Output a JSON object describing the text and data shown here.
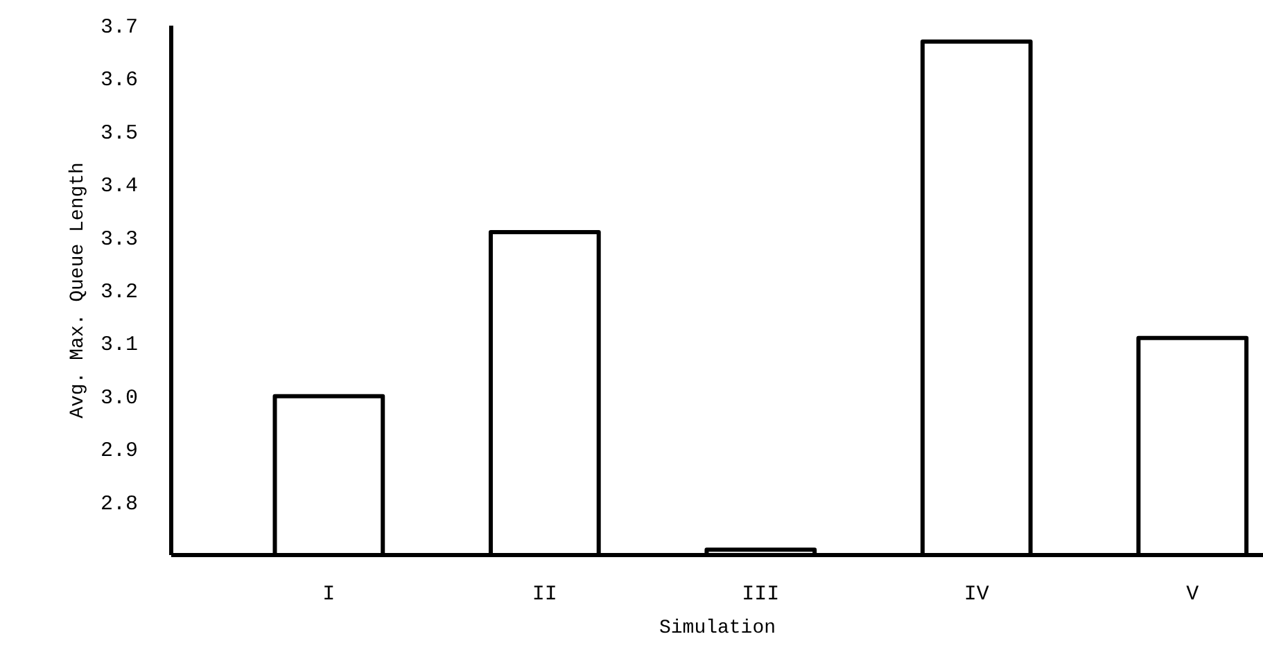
{
  "chart_data": {
    "type": "bar",
    "xlabel": "Simulation",
    "ylabel": "Avg. Max. Queue Length",
    "categories": [
      "I",
      "II",
      "III",
      "IV",
      "V"
    ],
    "values": [
      3.0,
      3.31,
      2.71,
      3.67,
      3.11
    ],
    "color": "#000000",
    "ylim": [
      2.7,
      3.7
    ],
    "yticks": [
      2.8,
      2.9,
      {
        "value": 3.0,
        "label": "3.0"
      },
      3.1,
      3.2,
      3.3,
      3.4,
      3.5,
      3.6,
      3.7
    ],
    "grid": false
  }
}
